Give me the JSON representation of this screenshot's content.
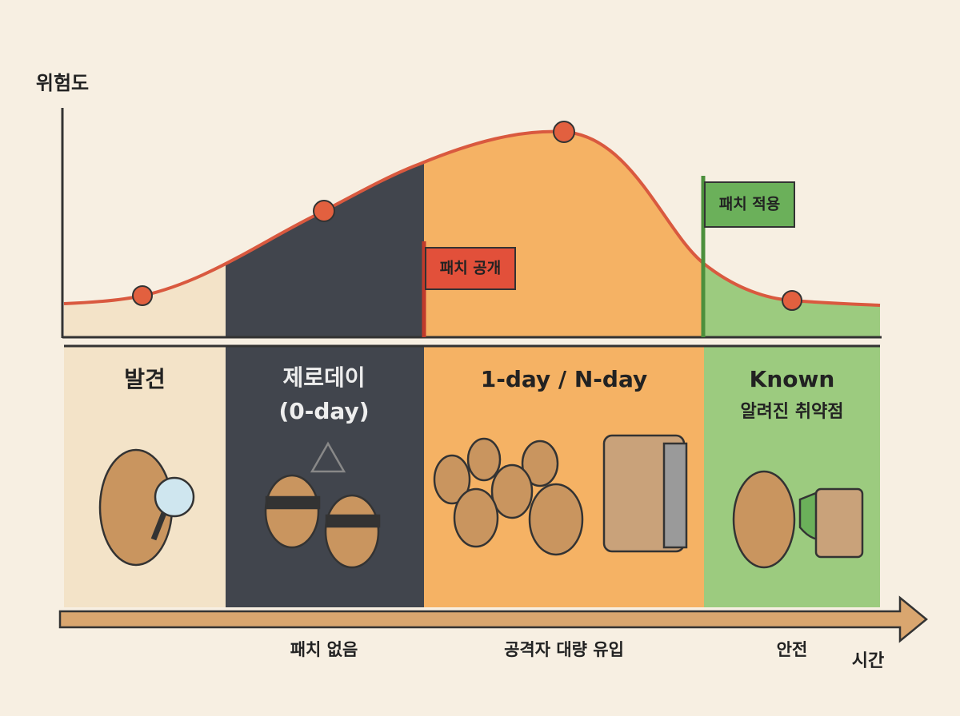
{
  "y_axis_label": "위험도",
  "x_axis_label": "시간",
  "flags": [
    "패치 공개",
    "패치 적용"
  ],
  "phases": [
    {
      "title": "발견"
    },
    {
      "title": "제로데이",
      "subtitle": "(0-day)",
      "caption": "패치 없음"
    },
    {
      "title": "1-day / N-day",
      "caption": "공격자 대량 유입"
    },
    {
      "title": "Known",
      "subtitle": "알려진 취약점",
      "caption": "안전"
    }
  ]
}
